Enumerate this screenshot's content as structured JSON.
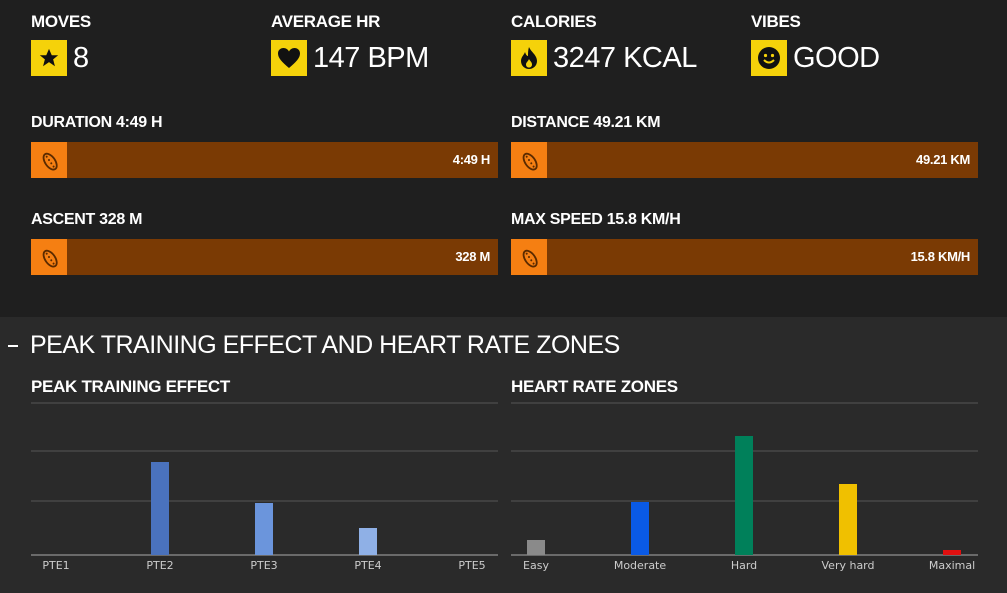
{
  "stats": [
    {
      "label": "MOVES",
      "value": "8",
      "icon": "star-icon"
    },
    {
      "label": "AVERAGE HR",
      "value": "147 BPM",
      "icon": "heart-icon"
    },
    {
      "label": "CALORIES",
      "value": "3247 KCAL",
      "icon": "flame-icon"
    },
    {
      "label": "VIBES",
      "value": "GOOD",
      "icon": "smiley-icon"
    }
  ],
  "metrics": [
    {
      "label": "DURATION 4:49 H",
      "value": "4:49 H",
      "icon": "footprint-icon"
    },
    {
      "label": "DISTANCE 49.21 KM",
      "value": "49.21 KM",
      "icon": "footprint-icon"
    },
    {
      "label": "ASCENT 328 M",
      "value": "328 M",
      "icon": "footprint-icon"
    },
    {
      "label": "MAX SPEED 15.8 KM/H",
      "value": "15.8 KM/H",
      "icon": "footprint-icon"
    }
  ],
  "colors": {
    "accent_yellow": "#f5d20a",
    "accent_orange": "#f57f12",
    "bar_brown": "#7a3a04"
  },
  "section": {
    "title": "PEAK TRAINING EFFECT AND HEART RATE ZONES"
  },
  "chart_data": [
    {
      "type": "bar",
      "title": "PEAK TRAINING EFFECT",
      "categories": [
        "PTE1",
        "PTE2",
        "PTE3",
        "PTE4",
        "PTE5"
      ],
      "values": [
        0,
        93,
        52,
        27,
        0
      ],
      "colors": [
        "#4f7fcf",
        "#4a72bd",
        "#6b95dc",
        "#8fb0e6",
        "#4f7fcf"
      ],
      "ylim": [
        0,
        150
      ],
      "grid": true
    },
    {
      "type": "bar",
      "title": "HEART RATE ZONES",
      "categories": [
        "Easy",
        "Moderate",
        "Hard",
        "Very hard",
        "Maximal"
      ],
      "values": [
        15,
        53,
        119,
        71,
        5
      ],
      "colors": [
        "#8a8a8a",
        "#0a5ae6",
        "#00805a",
        "#f0c000",
        "#e01010"
      ],
      "ylim": [
        0,
        150
      ],
      "grid": true
    }
  ]
}
